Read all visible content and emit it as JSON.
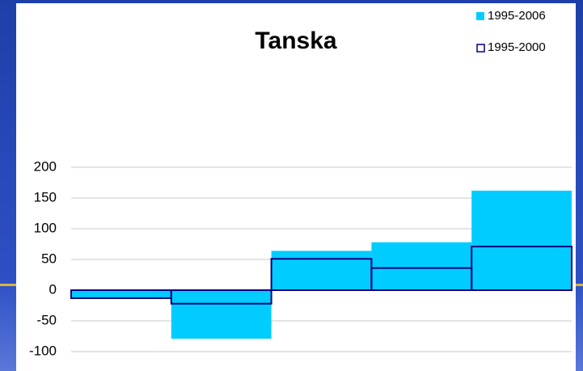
{
  "chart_data": {
    "type": "bar",
    "title": "Tanska",
    "categories": [
      null,
      null,
      null,
      null,
      null
    ],
    "series": [
      {
        "name": "1995-2006",
        "color": "#00ccff",
        "values": [
          -14,
          -79,
          64,
          78,
          162
        ]
      },
      {
        "name": "1995-2000",
        "color": "#000080",
        "values": [
          -13,
          -22,
          51,
          36,
          71
        ]
      }
    ],
    "ylim": [
      -125,
      200
    ],
    "yticks": [
      -100,
      -50,
      0,
      50,
      100,
      150,
      200
    ],
    "grid": true,
    "legend": "top-right"
  }
}
